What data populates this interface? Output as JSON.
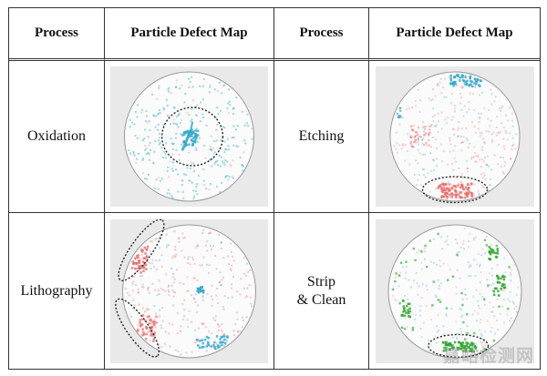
{
  "table": {
    "headers": [
      "Process",
      "Particle Defect Map",
      "Process",
      "Particle Defect Map"
    ],
    "rows": [
      {
        "left_process": [
          "Oxidation"
        ],
        "left_map": "oxidation",
        "right_process": [
          "Etching"
        ],
        "right_map": "etching"
      },
      {
        "left_process": [
          "Lithography"
        ],
        "left_map": "lithography",
        "right_process": [
          "Strip",
          "& Clean"
        ],
        "right_map": "strip-clean"
      }
    ]
  },
  "colors": {
    "grid_line": "#333333",
    "map_bg": "#e9e9e9",
    "wafer_fill": "#fbfbfb",
    "wafer_edge": "#9a9a9a",
    "cyan_defect": "#2fa8c8",
    "red_defect": "#e56a6a",
    "green_defect": "#2ea52e"
  },
  "watermark": "嘉峪检测网"
}
